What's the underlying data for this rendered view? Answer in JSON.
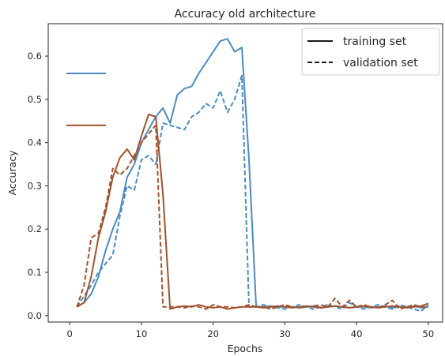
{
  "chart_data": {
    "type": "line",
    "title": "Accuracy old architecture",
    "xlabel": "Epochs",
    "ylabel": "Accuracy",
    "xlim": [
      -3,
      52
    ],
    "ylim": [
      -0.015,
      0.675
    ],
    "xticks": [
      0,
      10,
      20,
      30,
      40,
      50
    ],
    "yticks": [
      0.0,
      0.1,
      0.2,
      0.3,
      0.4,
      0.5,
      0.6
    ],
    "ytick_labels": [
      "0.0",
      "0.1",
      "0.2",
      "0.3",
      "0.4",
      "0.5",
      "0.6"
    ],
    "grid": false,
    "colors": {
      "blue": "#4c8bbf",
      "brown": "#a0522d",
      "text": "#262626",
      "legend_line": "#1a1a1a"
    },
    "legend": {
      "placement": "top-right",
      "entries": [
        {
          "label": "training set",
          "style": "solid"
        },
        {
          "label": "validation set",
          "style": "dashed"
        }
      ]
    },
    "series": [
      {
        "color": "blue",
        "style": "solid",
        "x": [
          1,
          2,
          3,
          4,
          5,
          6,
          7,
          8,
          9,
          10,
          11,
          12,
          13,
          14,
          15,
          16,
          17,
          18,
          19,
          20,
          21,
          22,
          23,
          24,
          25,
          26,
          27,
          28,
          29,
          30,
          31,
          32,
          33,
          34,
          35,
          36,
          37,
          38,
          39,
          40,
          41,
          42,
          43,
          44,
          45,
          46,
          47,
          48,
          49,
          50
        ],
        "y": [
          0.02,
          0.03,
          0.05,
          0.09,
          0.15,
          0.2,
          0.24,
          0.32,
          0.35,
          0.4,
          0.43,
          0.46,
          0.48,
          0.445,
          0.51,
          0.525,
          0.53,
          0.56,
          0.585,
          0.61,
          0.635,
          0.64,
          0.61,
          0.62,
          0.36,
          0.02,
          0.02,
          0.022,
          0.02,
          0.02,
          0.02,
          0.018,
          0.02,
          0.022,
          0.018,
          0.02,
          0.022,
          0.02,
          0.018,
          0.02,
          0.02,
          0.018,
          0.02,
          0.022,
          0.018,
          0.02,
          0.02,
          0.022,
          0.018,
          0.02
        ]
      },
      {
        "color": "blue",
        "style": "dashed",
        "x": [
          1,
          2,
          3,
          4,
          5,
          6,
          7,
          8,
          9,
          10,
          11,
          12,
          13,
          14,
          15,
          16,
          17,
          18,
          19,
          20,
          21,
          22,
          23,
          24,
          25,
          26,
          27,
          28,
          29,
          30,
          31,
          32,
          33,
          34,
          35,
          36,
          37,
          38,
          39,
          40,
          41,
          42,
          43,
          44,
          45,
          46,
          47,
          48,
          49,
          50
        ],
        "y": [
          0.02,
          0.045,
          0.07,
          0.1,
          0.12,
          0.14,
          0.23,
          0.3,
          0.29,
          0.36,
          0.37,
          0.35,
          0.445,
          0.44,
          0.435,
          0.43,
          0.46,
          0.47,
          0.49,
          0.48,
          0.52,
          0.47,
          0.5,
          0.555,
          0.02,
          0.02,
          0.025,
          0.02,
          0.018,
          0.015,
          0.02,
          0.025,
          0.02,
          0.015,
          0.02,
          0.025,
          0.02,
          0.015,
          0.03,
          0.02,
          0.015,
          0.02,
          0.025,
          0.02,
          0.015,
          0.025,
          0.02,
          0.015,
          0.01,
          0.025
        ]
      },
      {
        "color": "brown",
        "style": "solid",
        "x": [
          1,
          2,
          3,
          4,
          5,
          6,
          7,
          8,
          9,
          10,
          11,
          12,
          13,
          14,
          15,
          16,
          17,
          18,
          19,
          20,
          21,
          22,
          23,
          24,
          25,
          26,
          27,
          28,
          29,
          30,
          31,
          32,
          33,
          34,
          35,
          36,
          37,
          38,
          39,
          40,
          41,
          42,
          43,
          44,
          45,
          46,
          47,
          48,
          49,
          50
        ],
        "y": [
          0.02,
          0.03,
          0.09,
          0.18,
          0.24,
          0.32,
          0.365,
          0.385,
          0.36,
          0.415,
          0.465,
          0.46,
          0.28,
          0.015,
          0.02,
          0.022,
          0.02,
          0.025,
          0.02,
          0.018,
          0.02,
          0.015,
          0.018,
          0.02,
          0.02,
          0.02,
          0.018,
          0.02,
          0.022,
          0.02,
          0.018,
          0.02,
          0.022,
          0.02,
          0.018,
          0.02,
          0.022,
          0.02,
          0.018,
          0.02,
          0.022,
          0.02,
          0.018,
          0.02,
          0.022,
          0.02,
          0.018,
          0.02,
          0.022,
          0.028
        ]
      },
      {
        "color": "brown",
        "style": "dashed",
        "x": [
          1,
          2,
          3,
          4,
          5,
          6,
          7,
          8,
          9,
          10,
          11,
          12,
          13,
          14,
          15,
          16,
          17,
          18,
          19,
          20,
          21,
          22,
          23,
          24,
          25,
          26,
          27,
          28,
          29,
          30,
          31,
          32,
          33,
          34,
          35,
          36,
          37,
          38,
          39,
          40,
          41,
          42,
          43,
          44,
          45,
          46,
          47,
          48,
          49,
          50
        ],
        "y": [
          0.02,
          0.07,
          0.18,
          0.19,
          0.25,
          0.34,
          0.325,
          0.34,
          0.37,
          0.4,
          0.42,
          0.44,
          0.02,
          0.02,
          0.02,
          0.018,
          0.022,
          0.02,
          0.015,
          0.025,
          0.02,
          0.02,
          0.018,
          0.02,
          0.025,
          0.02,
          0.02,
          0.015,
          0.02,
          0.025,
          0.02,
          0.018,
          0.02,
          0.022,
          0.025,
          0.02,
          0.04,
          0.02,
          0.035,
          0.02,
          0.025,
          0.02,
          0.018,
          0.025,
          0.035,
          0.015,
          0.02,
          0.025,
          0.02,
          0.02
        ]
      }
    ],
    "side_markers": [
      {
        "color": "blue",
        "y": 0.56
      },
      {
        "color": "brown",
        "y": 0.44
      }
    ]
  }
}
